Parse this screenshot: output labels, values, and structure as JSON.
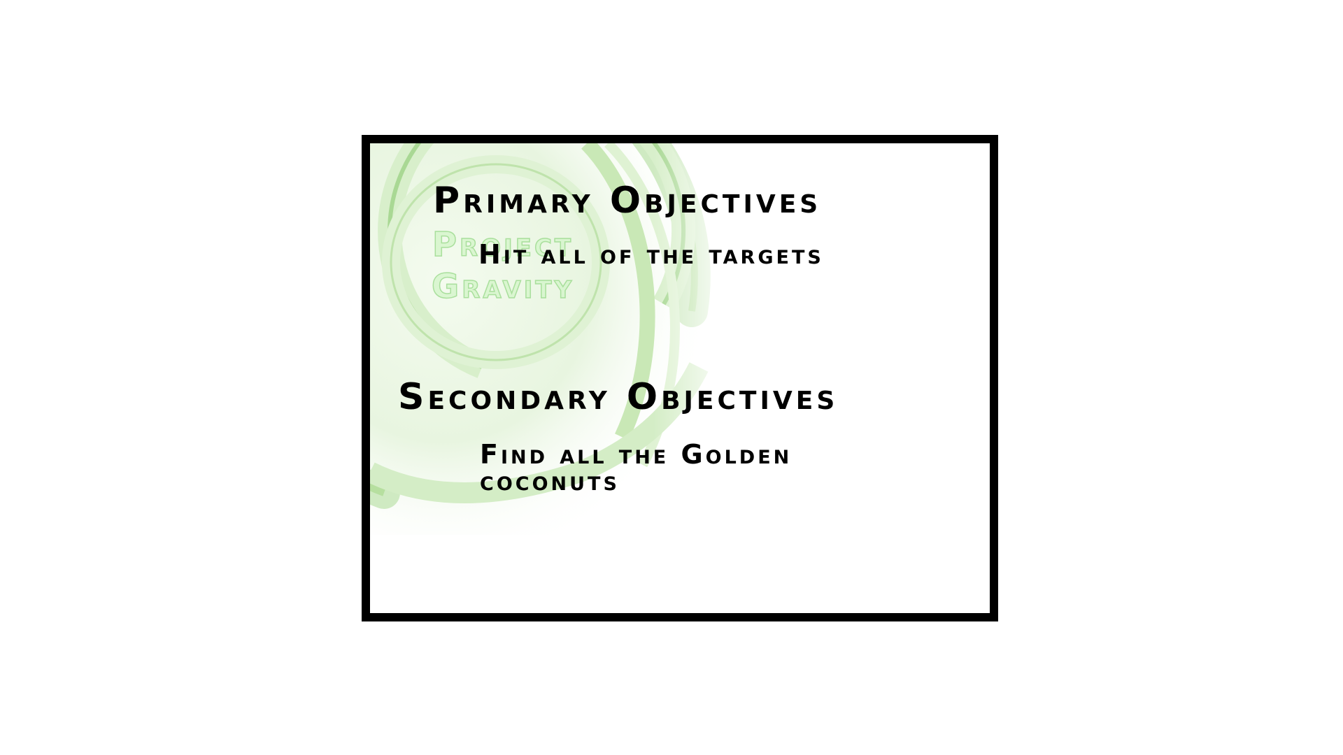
{
  "logo": {
    "line1": "Project",
    "line2": "Gravity"
  },
  "primary": {
    "title": "Primary Objectives",
    "items": [
      "Hit all of the targets"
    ]
  },
  "secondary": {
    "title": "Secondary Objectives",
    "items": [
      "Find all the Golden coconuts"
    ]
  },
  "colors": {
    "frame": "#000000",
    "swirl_green": "#9fd68a",
    "swirl_light": "#e4f4da",
    "text": "#000000"
  }
}
